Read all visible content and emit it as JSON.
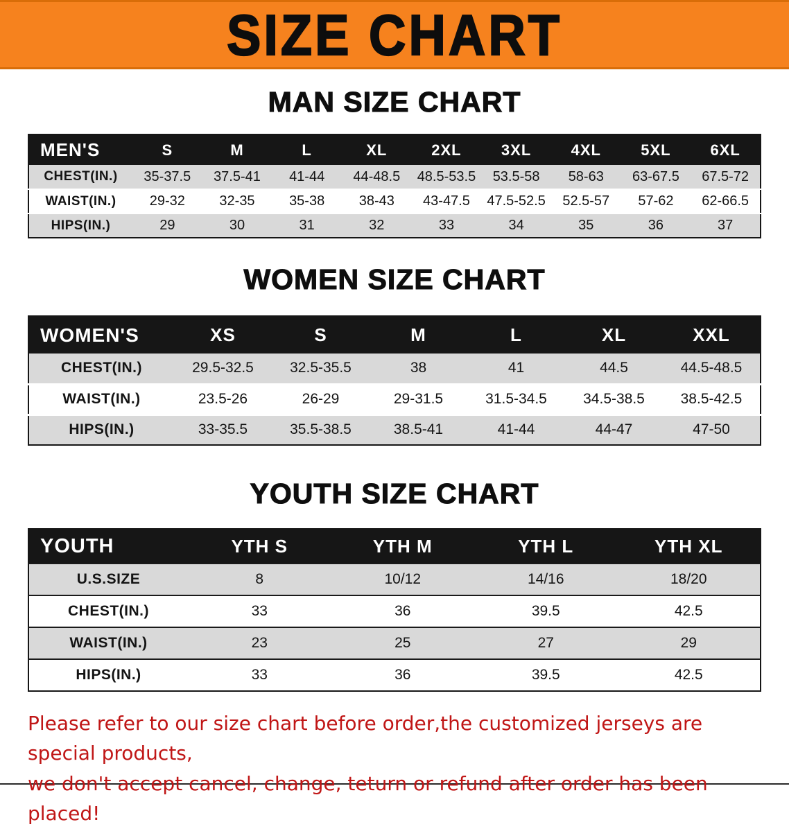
{
  "banner": {
    "title": "SIZE CHART"
  },
  "colors": {
    "banner_bg": "#f6821e",
    "header_bg": "#161616",
    "row_alt": "#d9d9d9",
    "footer_text": "#c01616"
  },
  "sections": [
    {
      "heading": "MAN SIZE CHART",
      "corner_label": "MEN'S",
      "columns": [
        "S",
        "M",
        "L",
        "XL",
        "2XL",
        "3XL",
        "4XL",
        "5XL",
        "6XL"
      ],
      "rows": [
        {
          "label": "CHEST(IN.)",
          "values": [
            "35-37.5",
            "37.5-41",
            "41-44",
            "44-48.5",
            "48.5-53.5",
            "53.5-58",
            "58-63",
            "63-67.5",
            "67.5-72"
          ]
        },
        {
          "label": "WAIST(IN.)",
          "values": [
            "29-32",
            "32-35",
            "35-38",
            "38-43",
            "43-47.5",
            "47.5-52.5",
            "52.5-57",
            "57-62",
            "62-66.5"
          ]
        },
        {
          "label": "HIPS(IN.)",
          "values": [
            "29",
            "30",
            "31",
            "32",
            "33",
            "34",
            "35",
            "36",
            "37"
          ]
        }
      ]
    },
    {
      "heading": "WOMEN SIZE CHART",
      "corner_label": "WOMEN'S",
      "columns": [
        "XS",
        "S",
        "M",
        "L",
        "XL",
        "XXL"
      ],
      "rows": [
        {
          "label": "CHEST(IN.)",
          "values": [
            "29.5-32.5",
            "32.5-35.5",
            "38",
            "41",
            "44.5",
            "44.5-48.5"
          ]
        },
        {
          "label": "WAIST(IN.)",
          "values": [
            "23.5-26",
            "26-29",
            "29-31.5",
            "31.5-34.5",
            "34.5-38.5",
            "38.5-42.5"
          ]
        },
        {
          "label": "HIPS(IN.)",
          "values": [
            "33-35.5",
            "35.5-38.5",
            "38.5-41",
            "41-44",
            "44-47",
            "47-50"
          ]
        }
      ]
    },
    {
      "heading": "YOUTH SIZE CHART",
      "corner_label": "YOUTH",
      "columns": [
        "YTH S",
        "YTH M",
        "YTH L",
        "YTH XL"
      ],
      "rows": [
        {
          "label": "U.S.SIZE",
          "values": [
            "8",
            "10/12",
            "14/16",
            "18/20"
          ]
        },
        {
          "label": "CHEST(IN.)",
          "values": [
            "33",
            "36",
            "39.5",
            "42.5"
          ]
        },
        {
          "label": "WAIST(IN.)",
          "values": [
            "23",
            "25",
            "27",
            "29"
          ]
        },
        {
          "label": "HIPS(IN.)",
          "values": [
            "33",
            "36",
            "39.5",
            "42.5"
          ]
        }
      ]
    }
  ],
  "footer": {
    "lines": [
      "Please refer to our size chart before order,the customized jerseys are special products,",
      "we don't accept cancel, change, teturn or refund after order has been placed!"
    ]
  }
}
